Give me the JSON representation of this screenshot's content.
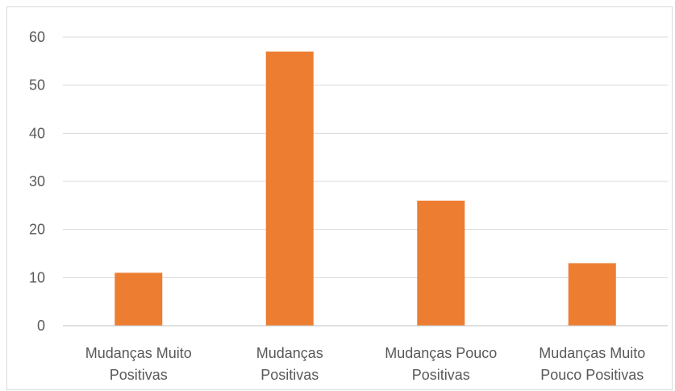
{
  "chart_data": {
    "type": "bar",
    "categories": [
      [
        "Mudanças Muito",
        "Positivas"
      ],
      [
        "Mudanças",
        "Positivas"
      ],
      [
        "Mudanças Pouco",
        "Positivas"
      ],
      [
        "Mudanças Muito",
        "Pouco Positivas"
      ]
    ],
    "values": [
      11,
      57,
      26,
      13
    ],
    "yticks": [
      0,
      10,
      20,
      30,
      40,
      50,
      60
    ],
    "ylim": [
      0,
      60
    ],
    "grid": true,
    "legend": "none",
    "colors": {
      "bar": "#ed7d31",
      "grid": "#d9d9d9",
      "axis": "#bfbfbf",
      "text": "#595959"
    }
  }
}
